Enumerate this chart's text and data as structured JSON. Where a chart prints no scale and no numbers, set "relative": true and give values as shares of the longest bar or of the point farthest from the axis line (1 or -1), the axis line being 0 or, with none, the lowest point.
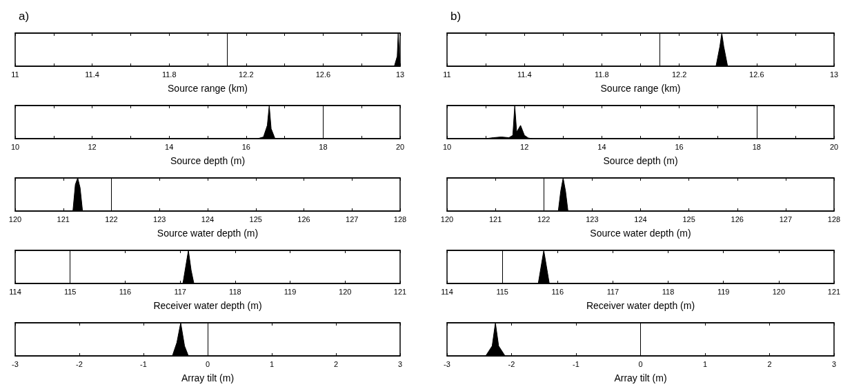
{
  "chart_data": [
    {
      "type": "area",
      "title": "a)",
      "xlabel": "Source range (km)",
      "relative": true,
      "xlim": [
        11,
        13
      ],
      "xticks": [
        11,
        {
          "value": 11.2,
          "label": null
        },
        11.4,
        {
          "value": 11.6,
          "label": null
        },
        11.8,
        {
          "value": 12,
          "label": null
        },
        12.2,
        {
          "value": 12.4,
          "label": null
        },
        12.6,
        {
          "value": 12.8,
          "label": null
        },
        13
      ],
      "series": [
        {
          "color": "#000000",
          "x": [
            12.97,
            12.985,
            12.99,
            12.995,
            13.0
          ],
          "values": [
            0,
            0.3,
            1,
            0.5,
            0
          ]
        }
      ],
      "ref_lines": [
        {
          "axis": "x",
          "value": 12.1,
          "color": "#000000"
        }
      ]
    },
    {
      "type": "area",
      "xlabel": "Source depth (m)",
      "relative": true,
      "xlim": [
        10,
        20
      ],
      "xticks": [
        10,
        {
          "value": 11,
          "label": null
        },
        12,
        {
          "value": 13,
          "label": null
        },
        14,
        {
          "value": 15,
          "label": null
        },
        16,
        {
          "value": 17,
          "label": null
        },
        18,
        {
          "value": 19,
          "label": null
        },
        20
      ],
      "series": [
        {
          "color": "#000000",
          "x": [
            16.3,
            16.45,
            16.55,
            16.6,
            16.65,
            16.75
          ],
          "values": [
            0,
            0.05,
            0.4,
            1,
            0.3,
            0
          ]
        }
      ],
      "ref_lines": [
        {
          "axis": "x",
          "value": 18,
          "color": "#000000"
        }
      ]
    },
    {
      "type": "area",
      "xlabel": "Source water depth (m)",
      "relative": true,
      "xlim": [
        120,
        128
      ],
      "xticks": [
        120,
        121,
        122,
        123,
        124,
        125,
        126,
        127,
        128
      ],
      "series": [
        {
          "color": "#000000",
          "x": [
            121.2,
            121.25,
            121.3,
            121.35,
            121.4
          ],
          "values": [
            0,
            0.8,
            1,
            0.7,
            0
          ]
        }
      ],
      "ref_lines": [
        {
          "axis": "x",
          "value": 122,
          "color": "#000000"
        }
      ]
    },
    {
      "type": "area",
      "xlabel": "Receiver water depth (m)",
      "relative": true,
      "xlim": [
        114,
        121
      ],
      "xticks": [
        114,
        115,
        116,
        117,
        118,
        119,
        120,
        121
      ],
      "series": [
        {
          "color": "#000000",
          "x": [
            117.05,
            117.1,
            117.15,
            117.2,
            117.25
          ],
          "values": [
            0,
            0.5,
            1,
            0.4,
            0
          ]
        }
      ],
      "ref_lines": [
        {
          "axis": "x",
          "value": 115,
          "color": "#000000"
        }
      ]
    },
    {
      "type": "area",
      "xlabel": "Array tilt (m)",
      "relative": true,
      "xlim": [
        -3,
        3
      ],
      "xticks": [
        -3,
        -2,
        -1,
        0,
        1,
        2,
        3
      ],
      "series": [
        {
          "color": "#000000",
          "x": [
            -0.55,
            -0.48,
            -0.42,
            -0.36,
            -0.3
          ],
          "values": [
            0,
            0.4,
            1,
            0.3,
            0
          ]
        }
      ],
      "ref_lines": [
        {
          "axis": "x",
          "value": 0,
          "color": "#000000"
        }
      ]
    },
    {
      "type": "area",
      "title": "b)",
      "xlabel": "Source range (km)",
      "relative": true,
      "xlim": [
        11,
        13
      ],
      "xticks": [
        11,
        {
          "value": 11.2,
          "label": null
        },
        11.4,
        {
          "value": 11.6,
          "label": null
        },
        11.8,
        {
          "value": 12,
          "label": null
        },
        12.2,
        {
          "value": 12.4,
          "label": null
        },
        12.6,
        {
          "value": 12.8,
          "label": null
        },
        13
      ],
      "series": [
        {
          "color": "#000000",
          "x": [
            12.39,
            12.41,
            12.42,
            12.43,
            12.45
          ],
          "values": [
            0,
            0.6,
            1,
            0.6,
            0
          ]
        }
      ],
      "ref_lines": [
        {
          "axis": "x",
          "value": 12.1,
          "color": "#000000"
        }
      ]
    },
    {
      "type": "area",
      "xlabel": "Source depth (m)",
      "relative": true,
      "xlim": [
        10,
        20
      ],
      "xticks": [
        10,
        {
          "value": 11,
          "label": null
        },
        12,
        {
          "value": 13,
          "label": null
        },
        14,
        {
          "value": 15,
          "label": null
        },
        16,
        {
          "value": 17,
          "label": null
        },
        18,
        {
          "value": 19,
          "label": null
        },
        20
      ],
      "series": [
        {
          "color": "#000000",
          "x": [
            11.0,
            11.2,
            11.4,
            11.6,
            11.7,
            11.75,
            11.8,
            11.85,
            11.9,
            11.95,
            12.0,
            12.1,
            12.2
          ],
          "values": [
            0,
            0.03,
            0.05,
            0.03,
            0.1,
            1,
            0.2,
            0.3,
            0.4,
            0.25,
            0.1,
            0.02,
            0
          ]
        }
      ],
      "ref_lines": [
        {
          "axis": "x",
          "value": 18,
          "color": "#000000"
        }
      ]
    },
    {
      "type": "area",
      "xlabel": "Source water depth (m)",
      "relative": true,
      "xlim": [
        120,
        128
      ],
      "xticks": [
        120,
        121,
        122,
        123,
        124,
        125,
        126,
        127,
        128
      ],
      "series": [
        {
          "color": "#000000",
          "x": [
            122.3,
            122.35,
            122.4,
            122.45,
            122.5
          ],
          "values": [
            0,
            0.6,
            1,
            0.6,
            0
          ]
        }
      ],
      "ref_lines": [
        {
          "axis": "x",
          "value": 122,
          "color": "#000000"
        }
      ]
    },
    {
      "type": "area",
      "xlabel": "Receiver water depth (m)",
      "relative": true,
      "xlim": [
        114,
        121
      ],
      "xticks": [
        114,
        115,
        116,
        117,
        118,
        119,
        120,
        121
      ],
      "series": [
        {
          "color": "#000000",
          "x": [
            115.65,
            115.7,
            115.75,
            115.8,
            115.85
          ],
          "values": [
            0,
            0.5,
            1,
            0.5,
            0
          ]
        }
      ],
      "ref_lines": [
        {
          "axis": "x",
          "value": 115,
          "color": "#000000"
        }
      ]
    },
    {
      "type": "area",
      "xlabel": "Array tilt (m)",
      "relative": true,
      "xlim": [
        -3,
        3
      ],
      "xticks": [
        -3,
        -2,
        -1,
        0,
        1,
        2,
        3
      ],
      "series": [
        {
          "color": "#000000",
          "x": [
            -2.4,
            -2.3,
            -2.25,
            -2.2,
            -2.1
          ],
          "values": [
            0,
            0.3,
            1,
            0.3,
            0
          ]
        }
      ],
      "ref_lines": [
        {
          "axis": "x",
          "value": 0,
          "color": "#000000"
        }
      ]
    }
  ]
}
